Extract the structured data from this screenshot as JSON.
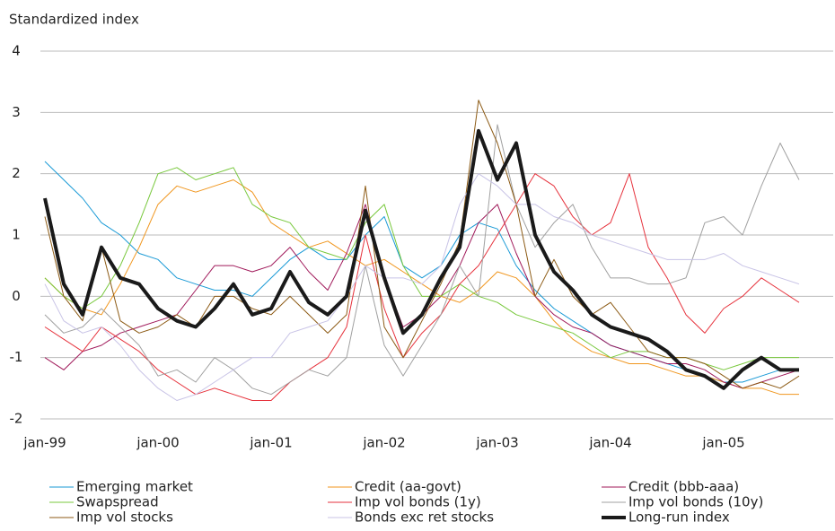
{
  "chart_data": {
    "type": "line",
    "y_label": "Standardized index",
    "categories": [
      "jan-99",
      null,
      null,
      null,
      null,
      null,
      "jan-00",
      null,
      null,
      null,
      null,
      null,
      "jan-01",
      null,
      null,
      null,
      null,
      null,
      "jan-02",
      null,
      null,
      null,
      null,
      null,
      "jan-03",
      null,
      null,
      null,
      null,
      null,
      "jan-04",
      null,
      null,
      null,
      null,
      null,
      "jan-05",
      null,
      null,
      null,
      null
    ],
    "ylim": [
      -2,
      4
    ],
    "yticks": [
      -2,
      -1,
      0,
      1,
      2,
      3,
      4
    ],
    "grid": true,
    "legend": "bottom",
    "series": [
      {
        "name": "Emerging market",
        "color": "#1a9ad6",
        "width": 1,
        "values": [
          2.2,
          1.9,
          1.6,
          1.2,
          1.0,
          0.7,
          0.6,
          0.3,
          0.2,
          0.1,
          0.1,
          0.0,
          0.3,
          0.6,
          0.8,
          0.6,
          0.6,
          1.0,
          1.3,
          0.5,
          0.3,
          0.5,
          1.0,
          1.2,
          1.1,
          0.5,
          0.1,
          -0.2,
          -0.4,
          -0.6,
          -0.8,
          -0.9,
          -1.0,
          -1.1,
          -1.2,
          -1.3,
          -1.4,
          -1.4,
          -1.3,
          -1.2,
          -1.2
        ]
      },
      {
        "name": "Credit (aa-govt)",
        "color": "#f0961e",
        "width": 1,
        "values": [
          0.3,
          0.0,
          -0.2,
          -0.3,
          0.2,
          0.8,
          1.5,
          1.8,
          1.7,
          1.8,
          1.9,
          1.7,
          1.2,
          1.0,
          0.8,
          0.9,
          0.7,
          0.5,
          0.6,
          0.4,
          0.2,
          0.0,
          -0.1,
          0.1,
          0.4,
          0.3,
          0.0,
          -0.4,
          -0.7,
          -0.9,
          -1.0,
          -1.1,
          -1.1,
          -1.2,
          -1.3,
          -1.3,
          -1.4,
          -1.5,
          -1.5,
          -1.6,
          -1.6
        ]
      },
      {
        "name": "Credit (bbb-aaa)",
        "color": "#a0195a",
        "width": 1,
        "values": [
          -1.0,
          -1.2,
          -0.9,
          -0.8,
          -0.6,
          -0.5,
          -0.4,
          -0.3,
          0.1,
          0.5,
          0.5,
          0.4,
          0.5,
          0.8,
          0.4,
          0.1,
          0.7,
          1.5,
          0.3,
          -0.5,
          -0.3,
          0.0,
          0.5,
          1.2,
          1.5,
          0.7,
          0.0,
          -0.3,
          -0.5,
          -0.6,
          -0.8,
          -0.9,
          -1.0,
          -1.1,
          -1.1,
          -1.2,
          -1.4,
          -1.5,
          -1.4,
          -1.3,
          -1.2
        ]
      },
      {
        "name": "Swapspread",
        "color": "#78c83c",
        "width": 1,
        "values": [
          0.3,
          0.0,
          -0.2,
          0.0,
          0.5,
          1.2,
          2.0,
          2.1,
          1.9,
          2.0,
          2.1,
          1.5,
          1.3,
          1.2,
          0.8,
          0.7,
          0.6,
          1.2,
          1.5,
          0.5,
          0.0,
          0.0,
          0.2,
          0.0,
          -0.1,
          -0.3,
          -0.4,
          -0.5,
          -0.6,
          -0.8,
          -1.0,
          -0.9,
          -0.9,
          -1.0,
          -1.0,
          -1.1,
          -1.2,
          -1.1,
          -1.0,
          -1.0,
          -1.0
        ]
      },
      {
        "name": "Imp vol bonds (1y)",
        "color": "#e6323c",
        "width": 1,
        "values": [
          -0.5,
          -0.7,
          -0.9,
          -0.5,
          -0.7,
          -0.9,
          -1.2,
          -1.4,
          -1.6,
          -1.5,
          -1.6,
          -1.7,
          -1.7,
          -1.4,
          -1.2,
          -1.0,
          -0.5,
          1.0,
          -0.2,
          -1.0,
          -0.6,
          -0.3,
          0.2,
          0.5,
          1.0,
          1.5,
          2.0,
          1.8,
          1.3,
          1.0,
          1.2,
          2.0,
          0.8,
          0.3,
          -0.3,
          -0.6,
          -0.2,
          0.0,
          0.3,
          0.1,
          -0.1
        ]
      },
      {
        "name": "Imp vol bonds (10y)",
        "color": "#a0a0a0",
        "width": 1,
        "values": [
          -0.3,
          -0.6,
          -0.5,
          -0.2,
          -0.5,
          -0.8,
          -1.3,
          -1.2,
          -1.4,
          -1.0,
          -1.2,
          -1.5,
          -1.6,
          -1.4,
          -1.2,
          -1.3,
          -1.0,
          0.5,
          -0.8,
          -1.3,
          -0.8,
          -0.3,
          0.5,
          0.0,
          2.8,
          1.5,
          0.8,
          1.2,
          1.5,
          0.8,
          0.3,
          0.3,
          0.2,
          0.2,
          0.3,
          1.2,
          1.3,
          1.0,
          1.8,
          2.5,
          1.9
        ]
      },
      {
        "name": "Imp vol stocks",
        "color": "#8c5a14",
        "width": 1,
        "values": [
          1.3,
          0.0,
          -0.4,
          0.8,
          -0.4,
          -0.6,
          -0.5,
          -0.3,
          -0.5,
          0.0,
          0.0,
          -0.2,
          -0.3,
          0.0,
          -0.3,
          -0.6,
          -0.3,
          1.8,
          -0.5,
          -1.0,
          -0.4,
          0.2,
          0.9,
          3.2,
          2.5,
          1.5,
          0.0,
          0.6,
          0.0,
          -0.3,
          -0.1,
          -0.5,
          -0.9,
          -1.0,
          -1.0,
          -1.1,
          -1.3,
          -1.5,
          -1.4,
          -1.5,
          -1.3
        ]
      },
      {
        "name": "Bonds exc ret stocks",
        "color": "#c8c3e6",
        "width": 1,
        "values": [
          0.2,
          -0.4,
          -0.6,
          -0.5,
          -0.8,
          -1.2,
          -1.5,
          -1.7,
          -1.6,
          -1.4,
          -1.2,
          -1.0,
          -1.0,
          -0.6,
          -0.5,
          -0.4,
          0.0,
          0.5,
          0.3,
          0.3,
          0.2,
          0.5,
          1.5,
          2.0,
          1.8,
          1.5,
          1.5,
          1.3,
          1.2,
          1.0,
          0.9,
          0.8,
          0.7,
          0.6,
          0.6,
          0.6,
          0.7,
          0.5,
          0.4,
          0.3,
          0.2
        ]
      },
      {
        "name": "Long-run index",
        "color": "#1a1a1a",
        "width": 4,
        "values": [
          1.6,
          0.2,
          -0.3,
          0.8,
          0.3,
          0.2,
          -0.2,
          -0.4,
          -0.5,
          -0.2,
          0.2,
          -0.3,
          -0.2,
          0.4,
          -0.1,
          -0.3,
          0.0,
          1.4,
          0.3,
          -0.6,
          -0.3,
          0.3,
          0.8,
          2.7,
          1.9,
          2.5,
          1.0,
          0.4,
          0.1,
          -0.3,
          -0.5,
          -0.6,
          -0.7,
          -0.9,
          -1.2,
          -1.3,
          -1.5,
          -1.2,
          -1.0,
          -1.2,
          -1.2
        ]
      }
    ]
  }
}
